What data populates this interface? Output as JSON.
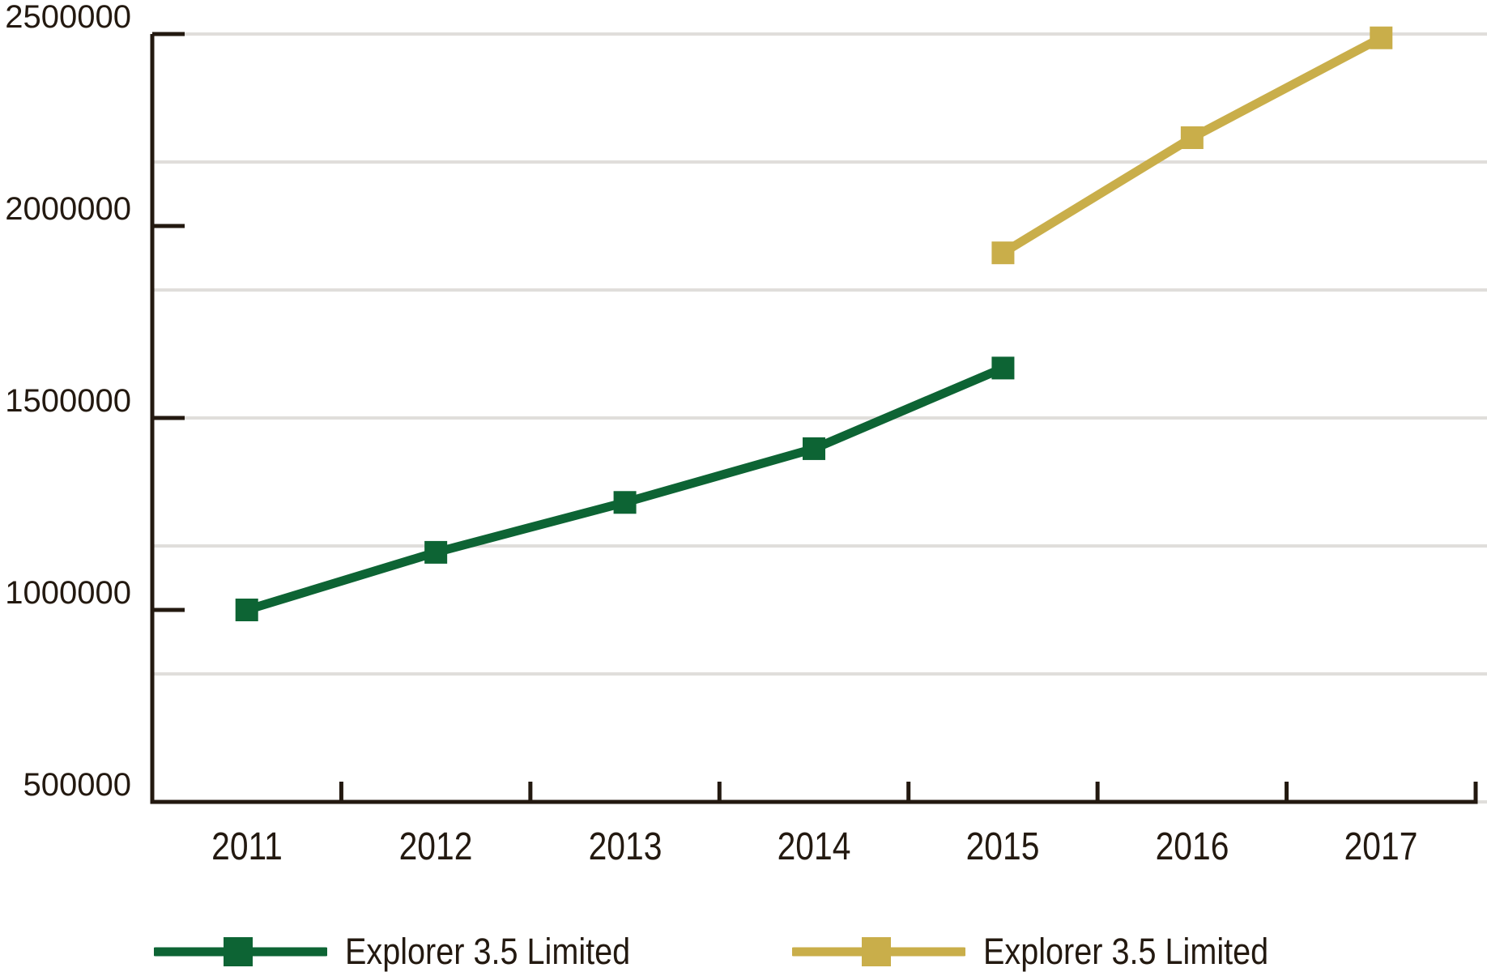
{
  "chart_data": {
    "type": "line",
    "title": "",
    "categories": [
      "2011",
      "2012",
      "2013",
      "2014",
      "2015",
      "2016",
      "2017"
    ],
    "series": [
      {
        "name": "Explorer 3.5 Limited",
        "color": "#0D6434",
        "values": [
          1000000,
          1150000,
          1280000,
          1420000,
          1630000,
          null,
          null
        ]
      },
      {
        "name": "Explorer 3.5 Limited",
        "color": "#C9AE4A",
        "values": [
          null,
          null,
          null,
          null,
          1930000,
          2230000,
          2490000
        ]
      }
    ],
    "y_axis": {
      "min": 500000,
      "max": 2500000,
      "tick_interval": 500000,
      "tick_labels": [
        "2500000",
        "2000000",
        "1500000",
        "1000000",
        "500000"
      ],
      "gridline_divisions": 6
    },
    "legend": {
      "position": "bottom"
    },
    "grid": "horizontal",
    "colors": {
      "axis": "#231910",
      "text": "#231910",
      "gridline": "#E0DEDB",
      "background": "#FFFFFF"
    }
  }
}
